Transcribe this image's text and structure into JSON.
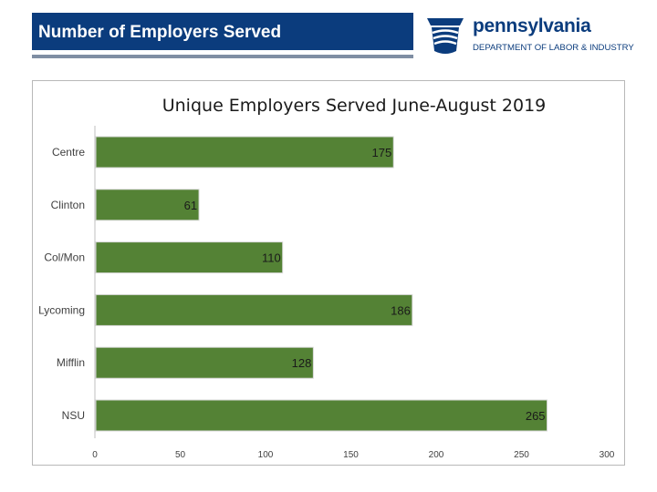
{
  "header": {
    "title": "Number of Employers Served"
  },
  "logo": {
    "name": "pennsylvania",
    "department": "DEPARTMENT OF LABOR & INDUSTRY"
  },
  "colors": {
    "header_bg": "#0b3c7d",
    "bar": "#548235",
    "accent": "#0b3c7d"
  },
  "chart_data": {
    "type": "bar",
    "orientation": "horizontal",
    "title": "Unique Employers Served June-August 2019",
    "categories": [
      "Centre",
      "Clinton",
      "Col/Mon",
      "Lycoming",
      "Mifflin",
      "NSU"
    ],
    "values": [
      175,
      61,
      110,
      186,
      128,
      265
    ],
    "xlim": [
      0,
      300
    ],
    "xticks": [
      0,
      50,
      100,
      150,
      200,
      250,
      300
    ],
    "xlabel": "",
    "ylabel": "",
    "grid": false,
    "legend": "none"
  }
}
